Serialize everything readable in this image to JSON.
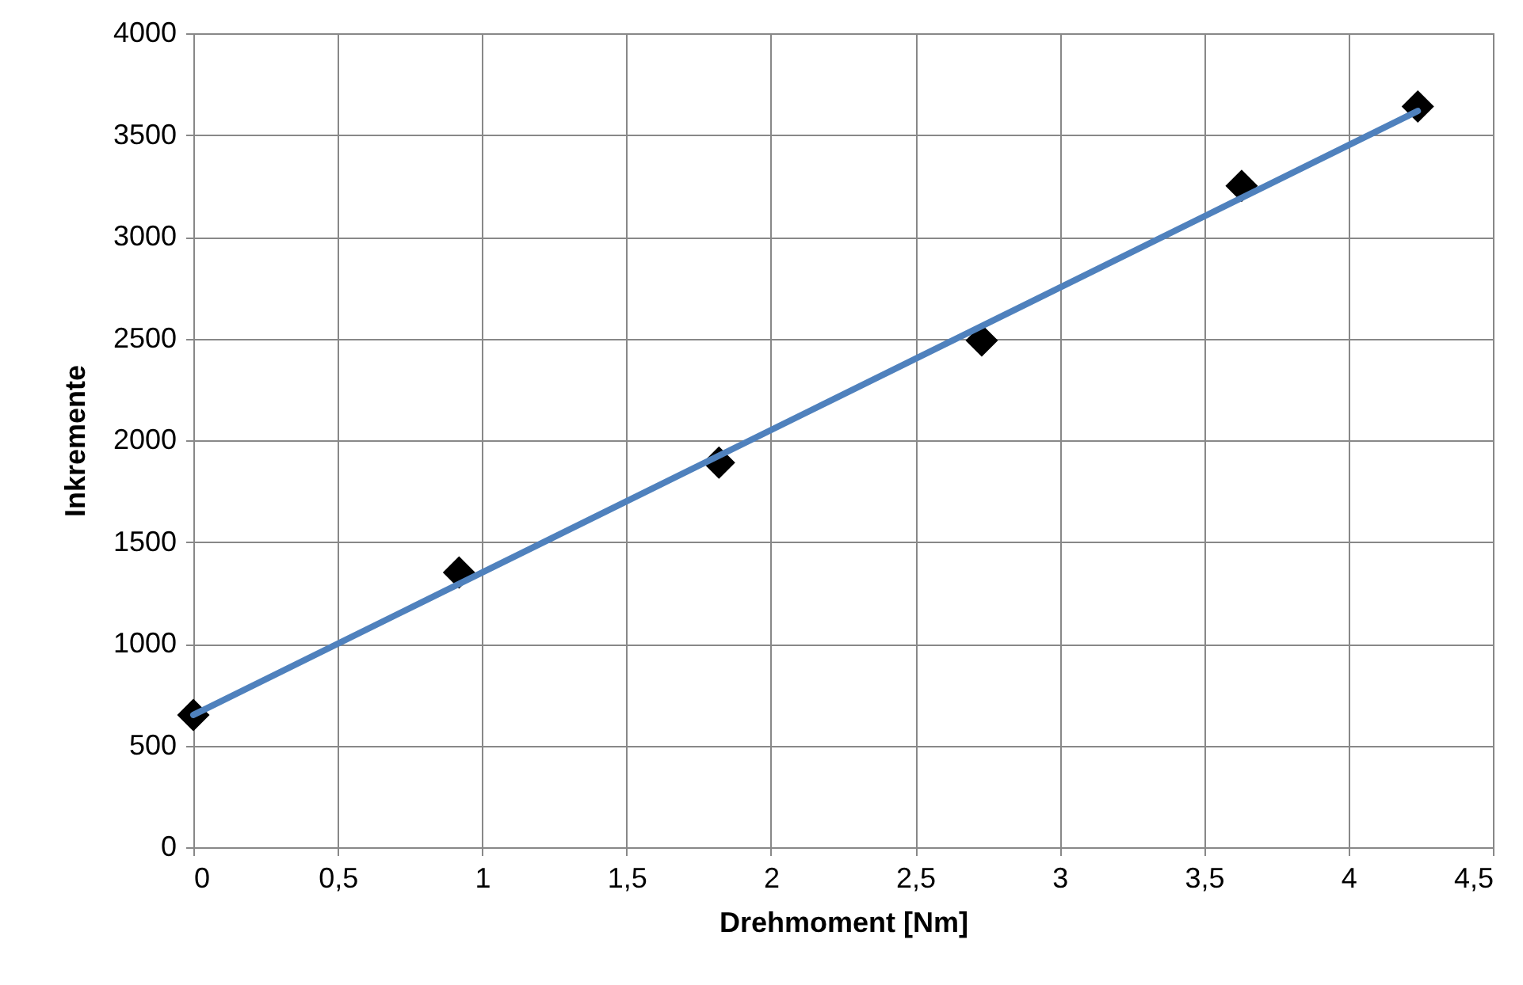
{
  "chart_data": {
    "type": "scatter",
    "xlabel": "Drehmoment [Nm]",
    "ylabel": "Inkremente",
    "xlim": [
      0,
      4.5
    ],
    "ylim": [
      0,
      4000
    ],
    "xticks": [
      0,
      {
        "value": 0.5,
        "label": "0,5"
      },
      1,
      {
        "value": 1.5,
        "label": "1,5"
      },
      2,
      {
        "value": 2.5,
        "label": "2,5"
      },
      3,
      {
        "value": 3.5,
        "label": "3,5"
      },
      4,
      {
        "value": 4.5,
        "label": "4,5"
      }
    ],
    "yticks": [
      0,
      500,
      1000,
      1500,
      2000,
      2500,
      3000,
      3500,
      4000
    ],
    "grid": true,
    "marker": "diamond",
    "series": [
      {
        "color": "#000000",
        "x": [
          0,
          0.92,
          1.82,
          2.73,
          3.63,
          4.24
        ],
        "values": [
          650,
          1350,
          1890,
          2490,
          3250,
          3640
        ]
      },
      {
        "type": "line",
        "color": "#4f81bd",
        "marker": "none",
        "x": [
          0,
          4.24
        ],
        "values": [
          650,
          3618
        ]
      }
    ]
  }
}
